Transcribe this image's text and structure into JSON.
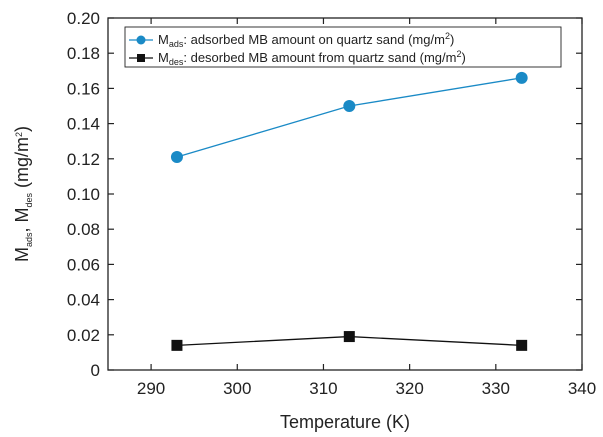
{
  "chart_data": {
    "type": "line",
    "xlabel": "Temperature (K)",
    "ylabel": {
      "base1": "M",
      "sub1": "ads",
      "sep": ", ",
      "base2": "M",
      "sub2": "des",
      "unit": " (mg/m",
      "sup": "2",
      "close": ")"
    },
    "xlim": [
      285,
      340
    ],
    "ylim": [
      0,
      0.2
    ],
    "xticks": [
      290,
      300,
      310,
      320,
      330,
      340
    ],
    "yticks": [
      0,
      0.02,
      0.04,
      0.06,
      0.08,
      0.1,
      0.12,
      0.14,
      0.16,
      0.18,
      0.2
    ],
    "xtick_labels": [
      "290",
      "300",
      "310",
      "320",
      "330",
      "340"
    ],
    "ytick_labels": [
      "0",
      "0.02",
      "0.04",
      "0.06",
      "0.08",
      "0.10",
      "0.12",
      "0.14",
      "0.16",
      "0.18",
      "0.20"
    ],
    "legend_position": "top-left",
    "grid": false,
    "series": [
      {
        "name": "M_ads: adsorbed MB amount on quartz sand (mg/m2)",
        "legend": {
          "base": "M",
          "sub": "ads",
          "text": ": adsorbed MB amount on quartz sand (mg/m",
          "sup": "2",
          "close": ")"
        },
        "marker": "circle",
        "color": "#1a8ac6",
        "x": [
          293,
          313,
          333
        ],
        "y": [
          0.121,
          0.15,
          0.166
        ]
      },
      {
        "name": "M_des: desorbed MB amount from quartz sand (mg/m2)",
        "legend": {
          "base": "M",
          "sub": "des",
          "text": ": desorbed  MB amount from quartz sand (mg/m",
          "sup": "2",
          "close": ")"
        },
        "marker": "square",
        "color": "#111111",
        "x": [
          293,
          313,
          333
        ],
        "y": [
          0.014,
          0.019,
          0.014
        ]
      }
    ]
  }
}
